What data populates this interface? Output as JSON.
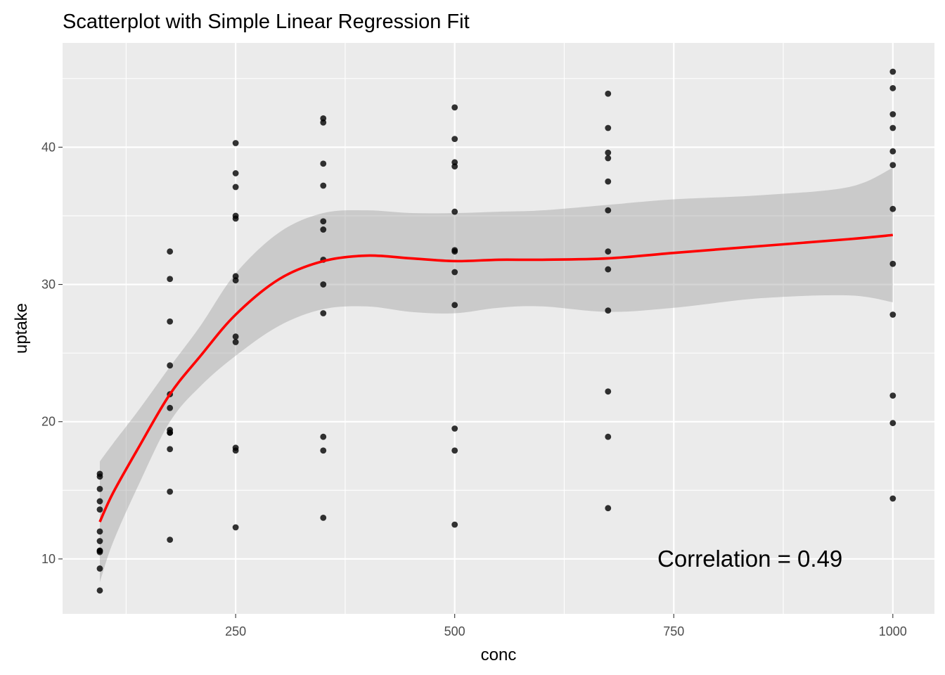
{
  "chart_data": {
    "type": "scatter",
    "title": "Scatterplot with Simple Linear Regression Fit",
    "xlabel": "conc",
    "ylabel": "uptake",
    "xlim": [
      52.5,
      1047.5
    ],
    "ylim": [
      6.0,
      47.6
    ],
    "x_ticks": [
      250,
      500,
      750,
      1000
    ],
    "x_tick_labels": [
      "250",
      "500",
      "750",
      "1000"
    ],
    "y_ticks": [
      10,
      20,
      30,
      40
    ],
    "y_tick_labels": [
      "10",
      "20",
      "30",
      "40"
    ],
    "grid": true,
    "annotation": {
      "text": "Correlation = 0.49",
      "x": 837,
      "y": 10
    },
    "colors": {
      "panel": "#ebebeb",
      "grid": "#ffffff",
      "points": "#000000",
      "fit_line": "#ff0000",
      "ribbon": "#999999"
    },
    "points": [
      {
        "x": 95,
        "y": 16.0
      },
      {
        "x": 95,
        "y": 13.6
      },
      {
        "x": 95,
        "y": 16.2
      },
      {
        "x": 95,
        "y": 14.2
      },
      {
        "x": 95,
        "y": 9.3
      },
      {
        "x": 95,
        "y": 15.1
      },
      {
        "x": 95,
        "y": 10.6
      },
      {
        "x": 95,
        "y": 12.0
      },
      {
        "x": 95,
        "y": 11.3
      },
      {
        "x": 95,
        "y": 10.5
      },
      {
        "x": 95,
        "y": 7.7
      },
      {
        "x": 95,
        "y": 10.6
      },
      {
        "x": 175,
        "y": 30.4
      },
      {
        "x": 175,
        "y": 27.3
      },
      {
        "x": 175,
        "y": 32.4
      },
      {
        "x": 175,
        "y": 24.1
      },
      {
        "x": 175,
        "y": 19.2
      },
      {
        "x": 175,
        "y": 22.0
      },
      {
        "x": 175,
        "y": 19.4
      },
      {
        "x": 175,
        "y": 18.0
      },
      {
        "x": 175,
        "y": 21.0
      },
      {
        "x": 175,
        "y": 14.9
      },
      {
        "x": 175,
        "y": 11.4
      },
      {
        "x": 175,
        "y": 19.2
      },
      {
        "x": 250,
        "y": 34.8
      },
      {
        "x": 250,
        "y": 37.1
      },
      {
        "x": 250,
        "y": 40.3
      },
      {
        "x": 250,
        "y": 30.3
      },
      {
        "x": 250,
        "y": 35.0
      },
      {
        "x": 250,
        "y": 38.1
      },
      {
        "x": 250,
        "y": 25.8
      },
      {
        "x": 250,
        "y": 30.6
      },
      {
        "x": 250,
        "y": 26.2
      },
      {
        "x": 250,
        "y": 18.1
      },
      {
        "x": 250,
        "y": 12.3
      },
      {
        "x": 250,
        "y": 17.9
      },
      {
        "x": 350,
        "y": 37.2
      },
      {
        "x": 350,
        "y": 41.8
      },
      {
        "x": 350,
        "y": 42.1
      },
      {
        "x": 350,
        "y": 34.6
      },
      {
        "x": 350,
        "y": 38.8
      },
      {
        "x": 350,
        "y": 34.0
      },
      {
        "x": 350,
        "y": 27.9
      },
      {
        "x": 350,
        "y": 31.8
      },
      {
        "x": 350,
        "y": 30.0
      },
      {
        "x": 350,
        "y": 17.9
      },
      {
        "x": 350,
        "y": 13.0
      },
      {
        "x": 350,
        "y": 18.9
      },
      {
        "x": 500,
        "y": 35.3
      },
      {
        "x": 500,
        "y": 40.6
      },
      {
        "x": 500,
        "y": 42.9
      },
      {
        "x": 500,
        "y": 32.5
      },
      {
        "x": 500,
        "y": 38.9
      },
      {
        "x": 500,
        "y": 38.6
      },
      {
        "x": 500,
        "y": 28.5
      },
      {
        "x": 500,
        "y": 32.4
      },
      {
        "x": 500,
        "y": 30.9
      },
      {
        "x": 500,
        "y": 17.9
      },
      {
        "x": 500,
        "y": 12.5
      },
      {
        "x": 500,
        "y": 19.5
      },
      {
        "x": 675,
        "y": 39.2
      },
      {
        "x": 675,
        "y": 41.4
      },
      {
        "x": 675,
        "y": 43.9
      },
      {
        "x": 675,
        "y": 35.4
      },
      {
        "x": 675,
        "y": 39.6
      },
      {
        "x": 675,
        "y": 37.5
      },
      {
        "x": 675,
        "y": 28.1
      },
      {
        "x": 675,
        "y": 31.1
      },
      {
        "x": 675,
        "y": 32.4
      },
      {
        "x": 675,
        "y": 18.9
      },
      {
        "x": 675,
        "y": 13.7
      },
      {
        "x": 675,
        "y": 22.2
      },
      {
        "x": 1000,
        "y": 39.7
      },
      {
        "x": 1000,
        "y": 44.3
      },
      {
        "x": 1000,
        "y": 45.5
      },
      {
        "x": 1000,
        "y": 38.7
      },
      {
        "x": 1000,
        "y": 42.4
      },
      {
        "x": 1000,
        "y": 41.4
      },
      {
        "x": 1000,
        "y": 27.8
      },
      {
        "x": 1000,
        "y": 31.5
      },
      {
        "x": 1000,
        "y": 35.5
      },
      {
        "x": 1000,
        "y": 19.9
      },
      {
        "x": 1000,
        "y": 14.4
      },
      {
        "x": 1000,
        "y": 21.9
      }
    ],
    "fit": {
      "x": [
        95,
        110,
        140,
        175,
        210,
        250,
        300,
        350,
        400,
        450,
        500,
        550,
        600,
        675,
        750,
        850,
        950,
        1000
      ],
      "y": [
        12.7,
        14.8,
        18.2,
        22.0,
        24.8,
        27.8,
        30.4,
        31.7,
        32.1,
        31.9,
        31.7,
        31.8,
        31.8,
        31.9,
        32.3,
        32.8,
        33.3,
        33.6
      ],
      "lower": [
        8.3,
        11.2,
        15.5,
        20.0,
        22.6,
        24.8,
        27.0,
        28.2,
        28.4,
        28.0,
        27.9,
        28.3,
        28.4,
        28.0,
        28.3,
        29.0,
        29.2,
        28.7
      ],
      "upper": [
        17.1,
        18.4,
        20.9,
        24.0,
        27.0,
        30.8,
        33.8,
        35.2,
        35.4,
        35.2,
        35.2,
        35.3,
        35.4,
        35.8,
        36.2,
        36.5,
        37.1,
        38.5
      ]
    }
  }
}
